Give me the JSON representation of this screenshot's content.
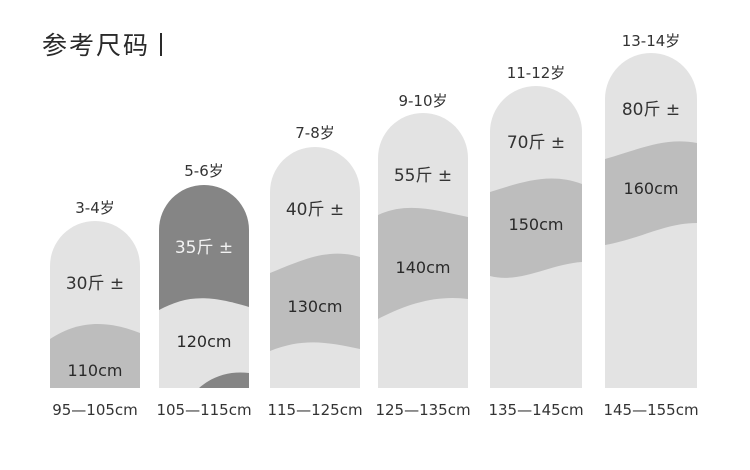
{
  "title": "参考尺码",
  "colors": {
    "light": "#e3e3e3",
    "mid": "#bdbdbd",
    "dark": "#858585",
    "text": "#2b2b2b"
  },
  "columns": [
    {
      "age": "3-4岁",
      "weight": "30斤 ±",
      "height": "110cm",
      "range": "95—105cm"
    },
    {
      "age": "5-6岁",
      "weight": "35斤 ±",
      "height": "120cm",
      "range": "105—115cm"
    },
    {
      "age": "7-8岁",
      "weight": "40斤 ±",
      "height": "130cm",
      "range": "115—125cm"
    },
    {
      "age": "9-10岁",
      "weight": "55斤 ±",
      "height": "140cm",
      "range": "125—135cm"
    },
    {
      "age": "11-12岁",
      "weight": "70斤 ±",
      "height": "150cm",
      "range": "135—145cm"
    },
    {
      "age": "13-14岁",
      "weight": "80斤 ±",
      "height": "160cm",
      "range": "145—155cm"
    }
  ]
}
